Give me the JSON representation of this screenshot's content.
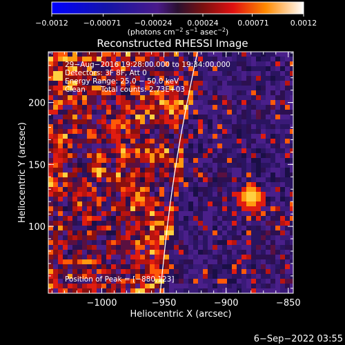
{
  "chart_data": {
    "type": "heatmap",
    "title": "Reconstructed RHESSI Image",
    "xlabel": "Heliocentric X (arcsec)",
    "ylabel": "Heliocentric Y (arcsec)",
    "xlim": [
      -1043,
      -846
    ],
    "ylim": [
      46,
      241
    ],
    "xticks": [
      -1000,
      -950,
      -900,
      -850
    ],
    "xtick_labels": [
      "−1000",
      "−950",
      "−900",
      "−850"
    ],
    "yticks": [
      100,
      150,
      200
    ],
    "ytick_labels": [
      "100",
      "150",
      "200"
    ],
    "colorbar": {
      "min": -0.0012,
      "max": 0.0012,
      "ticks": [
        -0.0012,
        -0.00071,
        -0.00024,
        0.00024,
        0.00071,
        0.0012
      ],
      "tick_labels": [
        "−0.0012",
        "−0.00071",
        "−0.00024",
        "0.00024",
        "0.00071",
        "0.0012"
      ],
      "unit_label": "(photons cm",
      "unit_exp1": "−2",
      "unit_mid": " s",
      "unit_exp2": "−1",
      "unit_mid2": " asec",
      "unit_exp3": "−2",
      "unit_end": ")"
    },
    "peak": {
      "x": -880,
      "y": 123
    },
    "limb_x_top": -923,
    "limb_x_bottom": -953
  },
  "info": {
    "time_range": "29−Aug−2016 19:28:00.000 to 19:34:00.000",
    "detectors": "Detectors: 3F 8F, Att 0",
    "energy": "Energy Range: 25.0 − 50.0 keV",
    "method": "Clean",
    "counts": "Total counts: 2.73E+03",
    "peak_text": "Position of Peak = [−880,123]"
  },
  "footer": {
    "timestamp": "6−Sep−2022 03:55"
  }
}
